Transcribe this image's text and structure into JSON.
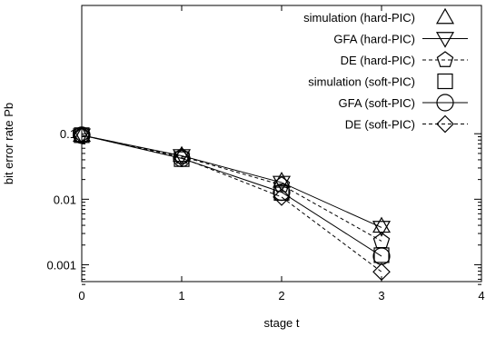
{
  "chart_data": {
    "type": "line",
    "xlabel": "stage t",
    "ylabel": "bit error rate Pb",
    "xlim": [
      0,
      4
    ],
    "ylim": [
      0.0005,
      0.13
    ],
    "yscale": "log",
    "x_ticks": [
      "0",
      "1",
      "2",
      "3",
      "4"
    ],
    "y_ticks": [
      "0.1",
      "0.01",
      "0.001"
    ],
    "grid": false,
    "legend_position": "top-right",
    "x": [
      0,
      1,
      2,
      3
    ],
    "series": [
      {
        "name": "simulation (hard-PIC)",
        "marker": "triangle-up",
        "line": "none",
        "values": [
          0.095,
          0.047,
          0.019,
          0.0039
        ]
      },
      {
        "name": "GFA (hard-PIC)",
        "marker": "triangle-down",
        "line": "solid",
        "values": [
          0.095,
          0.046,
          0.018,
          0.0037
        ]
      },
      {
        "name": "DE (hard-PIC)",
        "marker": "pentagon",
        "line": "dashed",
        "values": [
          0.095,
          0.045,
          0.0165,
          0.0023
        ]
      },
      {
        "name": "simulation (soft-PIC)",
        "marker": "square",
        "line": "none",
        "values": [
          0.095,
          0.041,
          0.0125,
          0.0014
        ]
      },
      {
        "name": "GFA (soft-PIC)",
        "marker": "circle",
        "line": "solid",
        "values": [
          0.095,
          0.042,
          0.0128,
          0.00135
        ]
      },
      {
        "name": "DE (soft-PIC)",
        "marker": "diamond",
        "line": "dashed",
        "values": [
          0.095,
          0.043,
          0.0108,
          0.00078
        ]
      }
    ]
  }
}
